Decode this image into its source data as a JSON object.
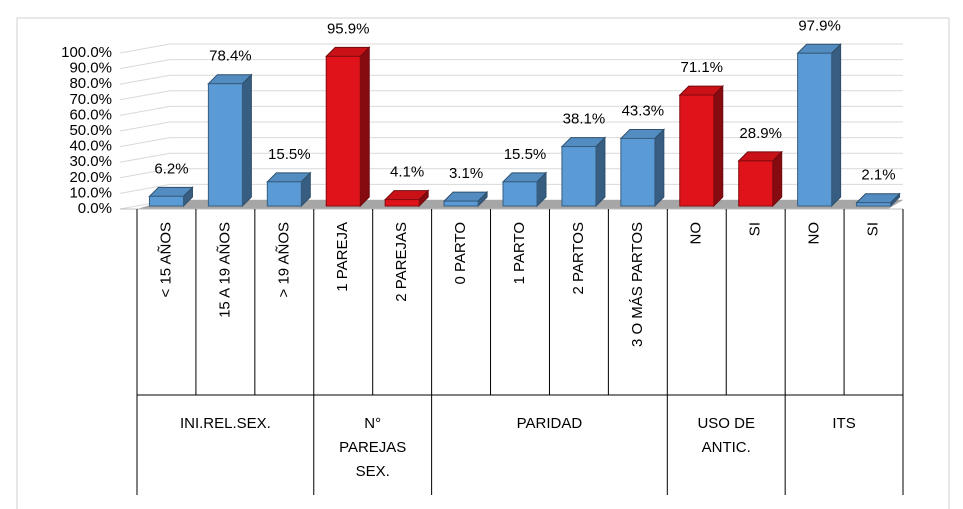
{
  "chart_data": {
    "type": "bar",
    "groups": [
      {
        "name": "INI.REL.SEX.",
        "categories": [
          "< 15 AÑOS",
          "15 A 19 AÑOS",
          "> 19 AÑOS"
        ]
      },
      {
        "name": "N° PAREJAS SEX.",
        "categories": [
          "1 PAREJA",
          "2 PAREJAS"
        ]
      },
      {
        "name": "PARIDAD",
        "categories": [
          "0 PARTO",
          "1 PARTO",
          "2 PARTOS",
          "3 O MÁS PARTOS"
        ]
      },
      {
        "name": "USO DE ANTIC.",
        "categories": [
          "NO",
          "SI"
        ]
      },
      {
        "name": "ITS",
        "categories": [
          "NO",
          "SI"
        ]
      }
    ],
    "values": [
      6.2,
      78.4,
      15.5,
      95.9,
      4.1,
      3.1,
      15.5,
      38.1,
      43.3,
      71.1,
      28.9,
      97.9,
      2.1
    ],
    "value_labels": [
      "6.2%",
      "78.4%",
      "15.5%",
      "95.9%",
      "4.1%",
      "3.1%",
      "15.5%",
      "38.1%",
      "43.3%",
      "71.1%",
      "28.9%",
      "97.9%",
      "2.1%"
    ],
    "colors": [
      "#5b9bd5",
      "#5b9bd5",
      "#5b9bd5",
      "#e0131a",
      "#e0131a",
      "#5b9bd5",
      "#5b9bd5",
      "#5b9bd5",
      "#5b9bd5",
      "#e0131a",
      "#e0131a",
      "#5b9bd5",
      "#5b9bd5"
    ],
    "ylim": [
      0,
      100
    ],
    "yticks": [
      {
        "value": 0,
        "label": "0.0%"
      },
      {
        "value": 10,
        "label": "10.0%"
      },
      {
        "value": 20,
        "label": "20.0%"
      },
      {
        "value": 30,
        "label": "30.0%"
      },
      {
        "value": 40,
        "label": "40.0%"
      },
      {
        "value": 50,
        "label": "50.0%"
      },
      {
        "value": 60,
        "label": "60.0%"
      },
      {
        "value": 70,
        "label": "70.0%"
      },
      {
        "value": 80,
        "label": "80.0%"
      },
      {
        "value": 90,
        "label": "90.0%"
      },
      {
        "value": 100,
        "label": "100.0%"
      }
    ],
    "grid": true
  }
}
